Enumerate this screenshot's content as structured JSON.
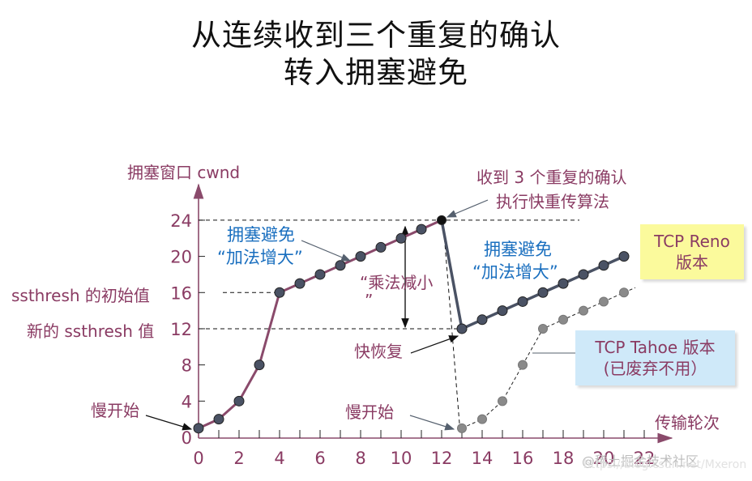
{
  "title": {
    "line1": "从连续收到三个重复的确认",
    "line2": "转入拥塞避免"
  },
  "colors": {
    "axis": "#8a4a6b",
    "label_text": "#8a3b63",
    "blue_text": "#1a6fbf",
    "slow_start_line": "#8a4a6b",
    "reno_line": "#4a5264",
    "point_fill": "#4a5264",
    "tahoe_point": "#8a8a8a",
    "reno_box": "#fbfa9c",
    "tahoe_box": "#cfe9f9"
  },
  "axes": {
    "y_label": "拥塞窗口 cwnd",
    "x_label": "传输轮次",
    "y_ticks": [
      "0",
      "4",
      "8",
      "12",
      "16",
      "20",
      "24"
    ],
    "x_ticks": [
      "0",
      "2",
      "4",
      "6",
      "8",
      "10",
      "12",
      "14",
      "16",
      "18",
      "20",
      "22"
    ]
  },
  "annotations": {
    "ssthresh_initial": "ssthresh 的初始值",
    "ssthresh_new": "新的 ssthresh 值",
    "slow_start_left": "慢开始",
    "slow_start_right": "慢开始",
    "ca_left_line1": "拥塞避免",
    "ca_left_line2": "“加法增大”",
    "ca_right_line1": "拥塞避免",
    "ca_right_line2": "“加法增大”",
    "md_line1": "“乘法减小",
    "md_line2": "”",
    "fast_recovery": "快恢复",
    "dup_ack_line1": "收到 3 个重复的确认",
    "dup_ack_line2": "执行快重传算法",
    "reno_line1": "TCP Reno",
    "reno_line2": "版本",
    "tahoe_line1": "TCP Tahoe 版本",
    "tahoe_line2": "(已废弃不用）"
  },
  "watermark": {
    "line1": "@稀土掘金技术社区",
    "line2": "https://blog.csdn.net/Mxeron"
  },
  "chart_data": {
    "type": "line",
    "title": "从连续收到三个重复的确认 转入拥塞避免",
    "xlabel": "传输轮次",
    "ylabel": "拥塞窗口 cwnd",
    "xlim": [
      0,
      22
    ],
    "ylim": [
      0,
      24
    ],
    "x_ticks": [
      0,
      2,
      4,
      6,
      8,
      10,
      12,
      14,
      16,
      18,
      20,
      22
    ],
    "y_ticks": [
      0,
      4,
      8,
      12,
      16,
      20,
      24
    ],
    "grid": false,
    "series": [
      {
        "name": "慢开始 + 拥塞避免",
        "x": [
          0,
          1,
          2,
          3,
          4,
          5,
          6,
          7,
          8,
          9,
          10,
          11,
          12
        ],
        "values": [
          1,
          2,
          4,
          8,
          16,
          17,
          18,
          19,
          20,
          21,
          22,
          23,
          24
        ]
      },
      {
        "name": "TCP Reno 版本",
        "x": [
          12,
          13,
          14,
          15,
          16,
          17,
          18,
          19,
          20,
          21
        ],
        "values": [
          24,
          12,
          13,
          14,
          15,
          16,
          17,
          18,
          19,
          20
        ]
      },
      {
        "name": "TCP Tahoe 版本 (已废弃不用)",
        "x": [
          12,
          13,
          14,
          15,
          16,
          17,
          18,
          19,
          20,
          21
        ],
        "values": [
          24,
          1,
          2,
          4,
          8,
          12,
          13,
          14,
          15,
          16
        ]
      }
    ],
    "reference_lines": [
      {
        "y": 24,
        "label": ""
      },
      {
        "y": 16,
        "label": "ssthresh 的初始值"
      },
      {
        "y": 12,
        "label": "新的 ssthresh 值"
      }
    ]
  }
}
